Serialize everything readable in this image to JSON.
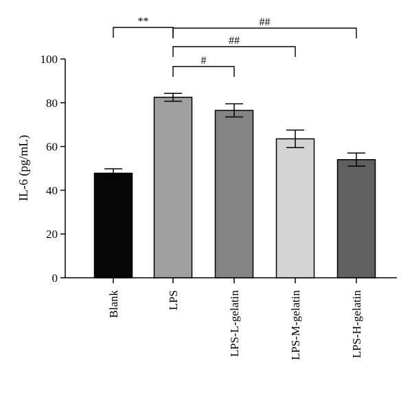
{
  "chart_data": {
    "type": "bar",
    "ylabel": "IL-6 (pg/mL)",
    "ylim": [
      0,
      100
    ],
    "yticks": [
      0,
      20,
      40,
      60,
      80,
      100
    ],
    "categories": [
      "Blank",
      "LPS",
      "LPS-L-gelatin",
      "LPS-M-gelatin",
      "LPS-H-gelatin"
    ],
    "values": [
      47.8,
      82.5,
      76.5,
      63.5,
      54.0
    ],
    "errors": [
      2.0,
      1.8,
      3.0,
      4.0,
      3.0
    ],
    "bar_colors": [
      "#060606",
      "#a0a0a0",
      "#848484",
      "#d4d4d4",
      "#606060"
    ],
    "significance": [
      {
        "from": 0,
        "to": 1,
        "label": "**"
      },
      {
        "from": 1,
        "to": 4,
        "label": "##"
      },
      {
        "from": 1,
        "to": 3,
        "label": "##"
      },
      {
        "from": 1,
        "to": 2,
        "label": "#"
      }
    ]
  }
}
